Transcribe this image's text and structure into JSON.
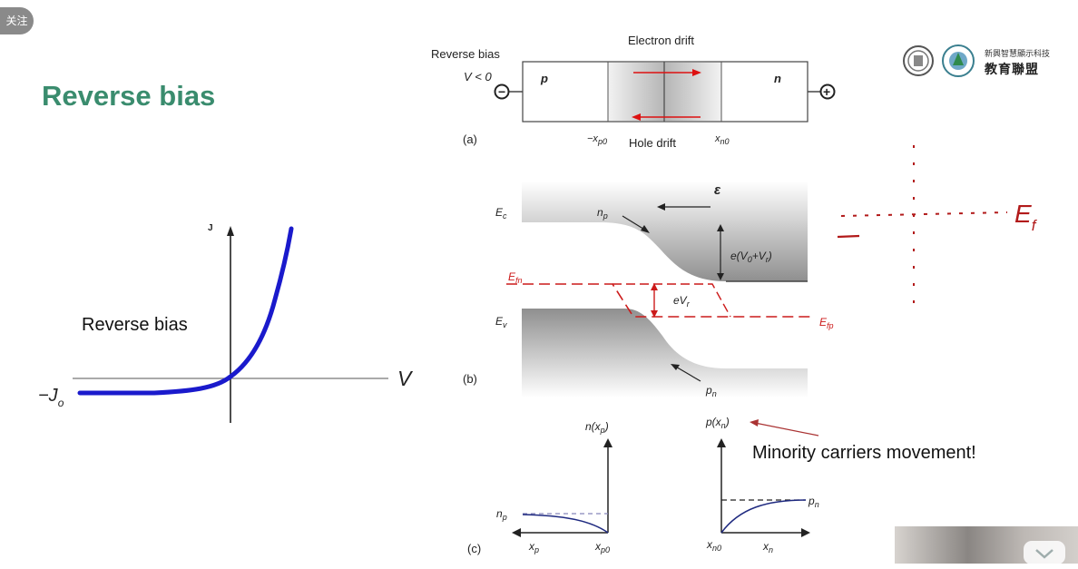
{
  "follow_button": {
    "label": "关注"
  },
  "slide": {
    "title": "Reverse bias",
    "logo": {
      "org_line1": "新興智慧顯示科技",
      "org_line2": "教育聯盟"
    }
  },
  "iv_plot": {
    "y_axis_label": "J",
    "x_axis_label": "V",
    "saturation_label": "−J",
    "saturation_sub": "o",
    "annotation": "Reverse bias"
  },
  "figure_a": {
    "bias_title": "Reverse bias",
    "bias_condition": "V < 0",
    "p_label": "p",
    "n_label": "n",
    "electron_drift": "Electron drift",
    "hole_drift": "Hole drift",
    "x_left": "−x",
    "x_left_sub": "p0",
    "x_right": "x",
    "x_right_sub": "n0",
    "panel": "(a)",
    "minus_terminal": "−",
    "plus_terminal": "+"
  },
  "figure_b": {
    "panel": "(b)",
    "ec": "E",
    "ec_sub": "c",
    "ev": "E",
    "ev_sub": "v",
    "efn": "E",
    "efn_sub": "fn",
    "efp": "E",
    "efp_sub": "fp",
    "field": "ε",
    "np": "n",
    "np_sub": "p",
    "pn": "p",
    "pn_sub": "n",
    "barrier": "e(V",
    "barrier_sub0": "0",
    "barrier_mid": "+V",
    "barrier_sub1": "r",
    "barrier_end": ")",
    "evr": "eV",
    "evr_sub": "r"
  },
  "figure_c": {
    "panel": "(c)",
    "left_ylabel": "n(x",
    "left_ylabel_sub": "p",
    "left_ylabel_end": ")",
    "left_level": "n",
    "left_level_sub": "p",
    "left_xlabel": "x",
    "left_xlabel_sub": "p",
    "left_origin": "x",
    "left_origin_sub": "p0",
    "right_ylabel": "p(x",
    "right_ylabel_sub": "n",
    "right_ylabel_end": ")",
    "right_level": "p",
    "right_level_sub": "n",
    "right_xlabel": "x",
    "right_xlabel_sub": "n",
    "right_origin": "x",
    "right_origin_sub": "n0"
  },
  "handwriting": {
    "ef": "E",
    "ef_sub": "f"
  },
  "annotation_note": "Minority carriers movement!",
  "colors": {
    "title_green": "#3a8c6e",
    "iv_curve": "#1a1acc",
    "quasi_fermi": "#cc1a1a",
    "band_gray": "#8f8f8f"
  }
}
